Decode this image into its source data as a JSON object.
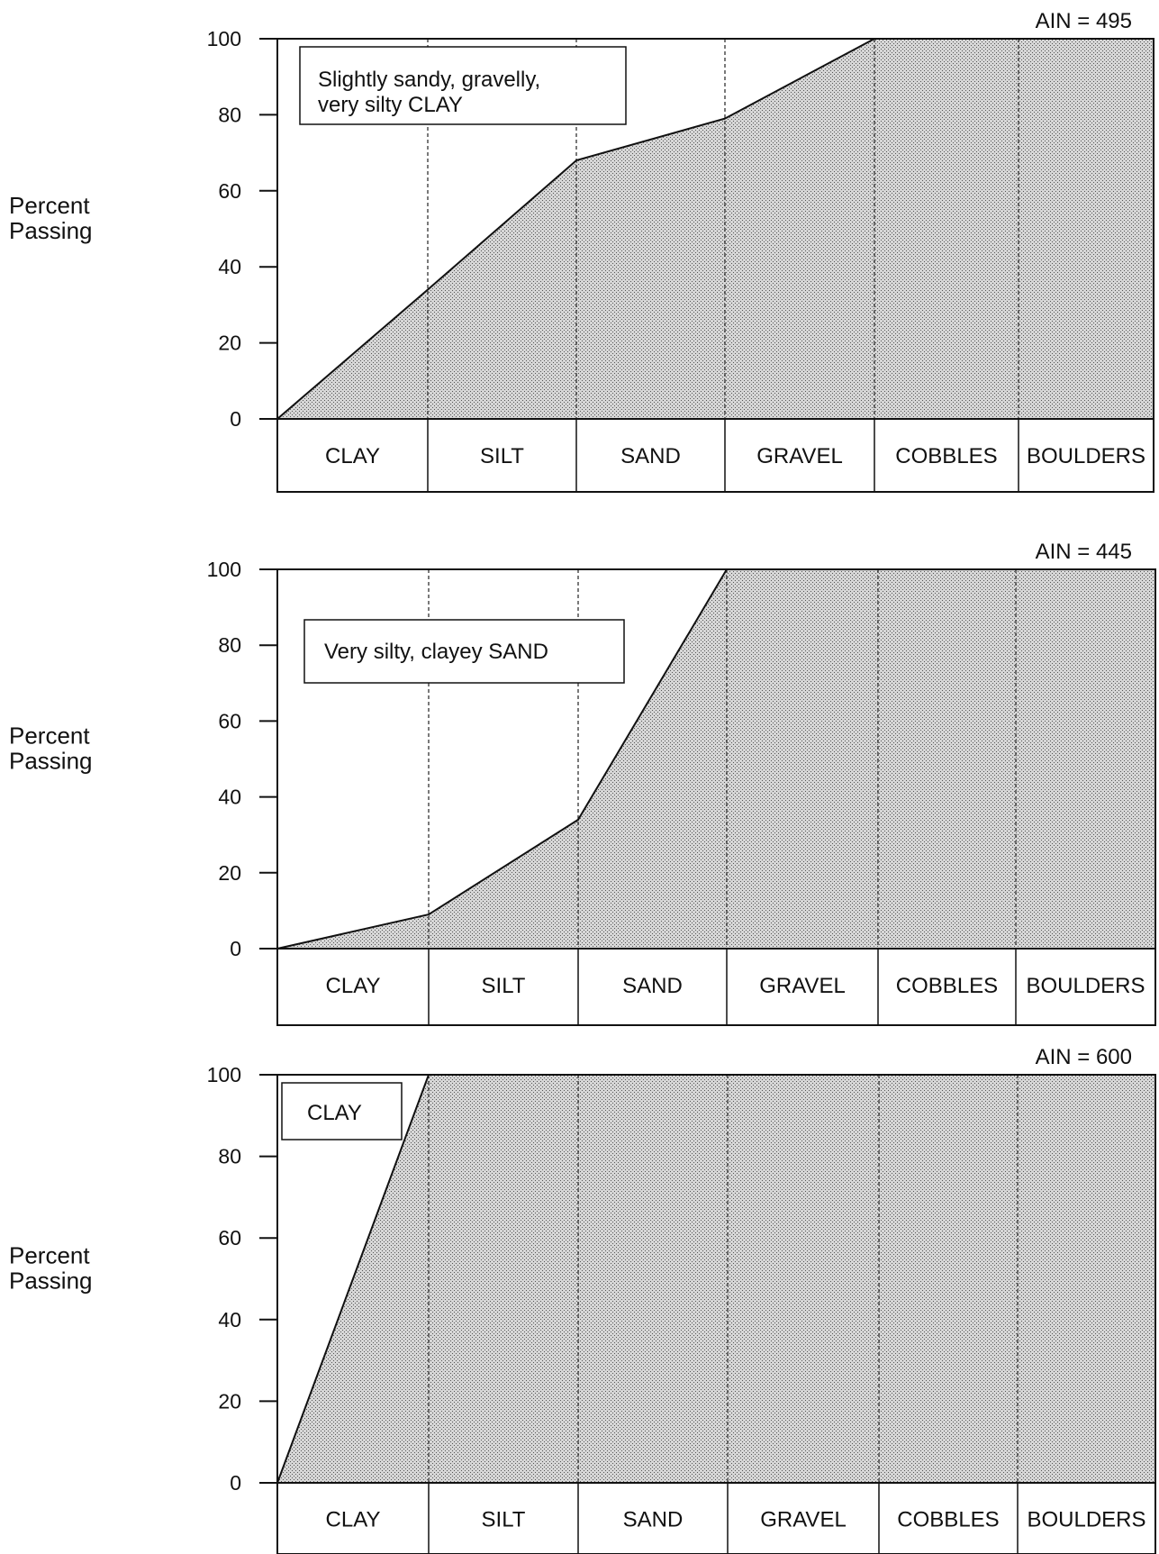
{
  "chart_data": [
    {
      "type": "area",
      "ylabel": "Percent\nPassing",
      "ain_label": "AIN  =  495",
      "annotation": "Slightly sandy, gravelly,\nvery silty CLAY",
      "categories": [
        "CLAY",
        "SILT",
        "SAND",
        "GRAVEL",
        "COBBLES",
        "BOULDERS"
      ],
      "y_ticks": [
        "100",
        "80",
        "60",
        "40",
        "20",
        "0"
      ],
      "ylim": [
        0,
        100
      ],
      "x": [
        0,
        1,
        2,
        3,
        4,
        5,
        6
      ],
      "values": [
        0,
        34,
        68,
        79,
        100,
        100,
        100
      ],
      "grid": "vertical dashed at category boundaries",
      "fill": "#bdbdbd"
    },
    {
      "type": "area",
      "ylabel": "Percent\nPassing",
      "ain_label": "AIN  =  445",
      "annotation": "Very silty, clayey SAND",
      "categories": [
        "CLAY",
        "SILT",
        "SAND",
        "GRAVEL",
        "COBBLES",
        "BOULDERS"
      ],
      "y_ticks": [
        "100",
        "80",
        "60",
        "40",
        "20",
        "0"
      ],
      "ylim": [
        0,
        100
      ],
      "x": [
        0,
        1,
        2,
        3,
        4,
        5,
        6
      ],
      "values": [
        0,
        9,
        34,
        100,
        100,
        100,
        100
      ],
      "grid": "vertical dashed at category boundaries",
      "fill": "#bdbdbd"
    },
    {
      "type": "area",
      "ylabel": "Percent\nPassing",
      "ain_label": "AIN  =  600",
      "annotation": "CLAY",
      "categories": [
        "CLAY",
        "SILT",
        "SAND",
        "GRAVEL",
        "COBBLES",
        "BOULDERS"
      ],
      "y_ticks": [
        "100",
        "80",
        "60",
        "40",
        "20",
        "0"
      ],
      "ylim": [
        0,
        100
      ],
      "x": [
        0,
        1,
        2,
        3,
        4,
        5,
        6
      ],
      "values": [
        0,
        100,
        100,
        100,
        100,
        100,
        100
      ],
      "grid": "vertical dashed at category boundaries",
      "fill": "#bdbdbd"
    }
  ]
}
